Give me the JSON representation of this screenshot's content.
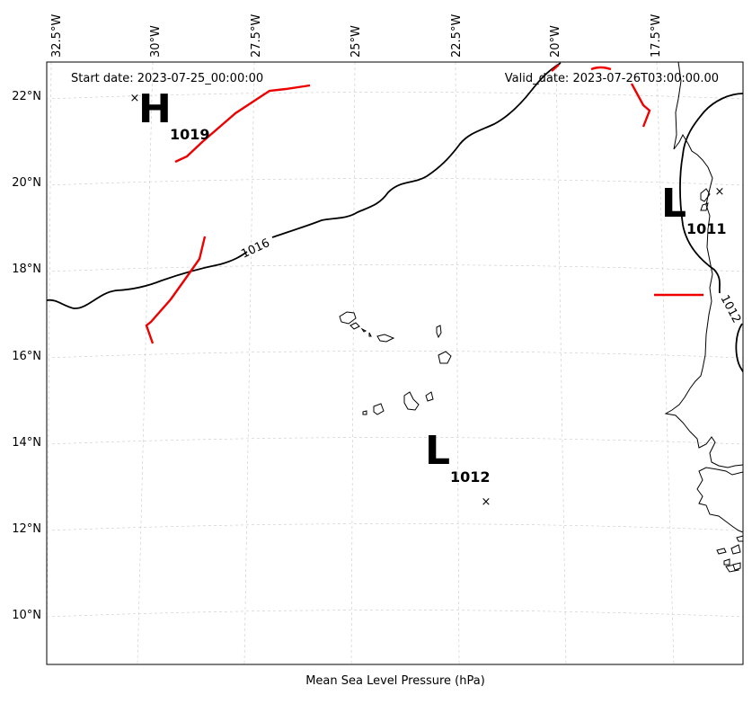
{
  "header": {
    "start_label": "Start date: 2023-07-25_00:00:00",
    "valid_label": "Valid_date: 2023-07-26T03:00:00.00"
  },
  "footer": {
    "caption": "Mean Sea Level Pressure (hPa)"
  },
  "lon_labels": [
    "32.5°W",
    "30°W",
    "27.5°W",
    "25°W",
    "22.5°W",
    "20°W",
    "17.5°W"
  ],
  "lat_labels": [
    "22°N",
    "20°N",
    "18°N",
    "16°N",
    "14°N",
    "12°N",
    "10°N"
  ],
  "pressure_centers": [
    {
      "symbol": "H",
      "value": "1019"
    },
    {
      "symbol": "L",
      "value": "1011"
    },
    {
      "symbol": "L",
      "value": "1012"
    }
  ],
  "isobar_labels": [
    "1016",
    "1012"
  ],
  "colors": {
    "front": "#ee0000",
    "isobar": "#000000",
    "grid": "#c8c8c8"
  }
}
